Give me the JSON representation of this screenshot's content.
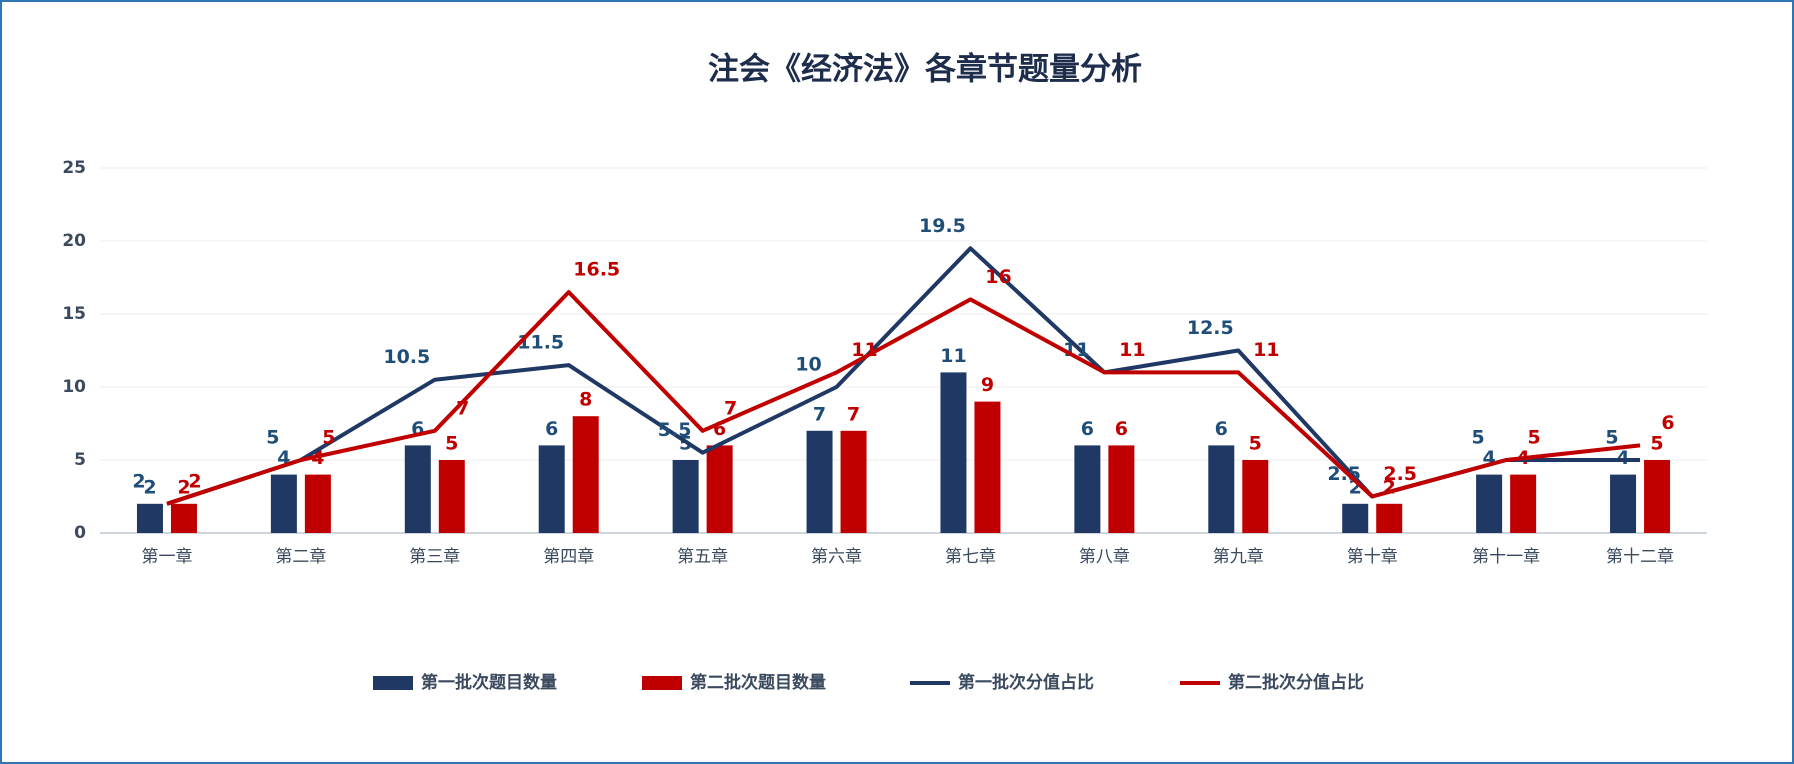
{
  "chart_data": {
    "type": "bar-line",
    "title": "注会《经济法》各章节题量分析",
    "categories": [
      "第一章",
      "第二章",
      "第三章",
      "第四章",
      "第五章",
      "第六章",
      "第七章",
      "第八章",
      "第九章",
      "第十章",
      "第十一章",
      "第十二章"
    ],
    "series": [
      {
        "name": "第一批次题目数量",
        "type": "bar",
        "color": "#1f3864",
        "values": [
          2,
          4,
          6,
          6,
          5,
          7,
          11,
          6,
          6,
          2,
          4,
          4
        ]
      },
      {
        "name": "第二批次题目数量",
        "type": "bar",
        "color": "#c00000",
        "values": [
          2,
          4,
          5,
          8,
          6,
          7,
          9,
          6,
          5,
          2,
          4,
          5
        ]
      },
      {
        "name": "第一批次分值占比",
        "type": "line",
        "color": "#1f3864",
        "values": [
          2,
          5,
          10.5,
          11.5,
          5.5,
          10,
          19.5,
          11,
          12.5,
          2.5,
          5,
          5
        ]
      },
      {
        "name": "第二批次分值占比",
        "type": "line",
        "color": "#c00000",
        "values": [
          2,
          5,
          7,
          16.5,
          7,
          11,
          16,
          11,
          11,
          2.5,
          5,
          6
        ]
      }
    ],
    "ylim": [
      0,
      25
    ],
    "yticks": [
      0,
      5,
      10,
      15,
      20,
      25
    ],
    "grid": true,
    "legend": "bottom"
  }
}
